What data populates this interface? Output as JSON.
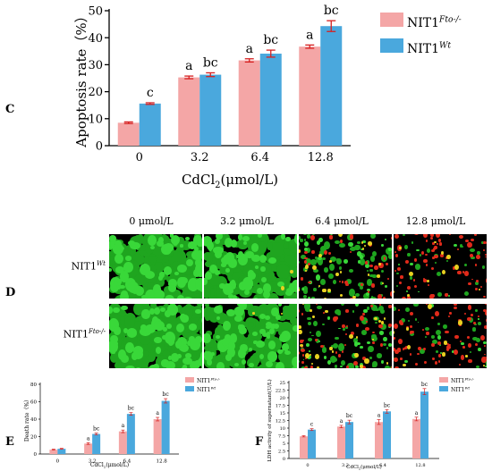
{
  "panels": {
    "C": {
      "letter": "C",
      "chart_data": {
        "type": "bar",
        "categories": [
          "0",
          "3.2",
          "6.4",
          "12.8"
        ],
        "series": [
          {
            "name": "NIT1Fto-/-",
            "values": [
              8.5,
              25.3,
              31.6,
              36.7
            ],
            "errors": [
              0.3,
              0.5,
              0.6,
              0.6
            ],
            "sig": [
              "",
              "a",
              "a",
              "a"
            ]
          },
          {
            "name": "NIT1Wt",
            "values": [
              15.6,
              26.3,
              34.1,
              44.3
            ],
            "errors": [
              0.3,
              0.7,
              1.3,
              2.0
            ],
            "sig": [
              "c",
              "bc",
              "bc",
              "bc"
            ]
          }
        ],
        "ylabel": "Apoptosis rate（%）",
        "xlabel": "CdCl2(μmol/L)",
        "ylim": [
          0,
          50
        ],
        "yticks": [
          "0",
          "10",
          "20",
          "30",
          "40",
          "50"
        ],
        "legend": [
          {
            "base": "NIT1",
            "sup": "Fto-/-"
          },
          {
            "base": "NIT1",
            "sup": "Wt"
          }
        ],
        "legend_position": "top-right",
        "colors": [
          "#f4a6a6",
          "#4aa8dd"
        ]
      }
    },
    "D": {
      "letter": "D",
      "conditions": [
        "0 μmol/L",
        "3.2 μmol/L",
        "6.4 μmol/L",
        "12.8 μmol/L"
      ],
      "rows": [
        {
          "base": "NIT1",
          "sup": "Wt"
        },
        {
          "base": "NIT1",
          "sup": "Fto-/-"
        }
      ]
    },
    "E": {
      "letter": "E",
      "chart_data": {
        "type": "bar",
        "categories": [
          "0",
          "3.2",
          "6.4",
          "12.8"
        ],
        "series": [
          {
            "name": "NIT1Fto-/-",
            "values": [
              5,
              12,
              26,
              40
            ],
            "errors": [
              0.5,
              1,
              1.5,
              2
            ],
            "sig": [
              "",
              "a",
              "a",
              "a"
            ]
          },
          {
            "name": "NIT1Wt",
            "values": [
              6,
              23,
              46,
              61
            ],
            "errors": [
              0.5,
              1,
              1.5,
              2.5
            ],
            "sig": [
              "",
              "bc",
              "bc",
              "bc"
            ]
          }
        ],
        "ylabel": "Death rate（%）",
        "xlabel": "CdCl2(μmol/L)",
        "ylim": [
          0,
          80
        ],
        "yticks": [
          "0",
          "20",
          "40",
          "60",
          "80"
        ],
        "legend": [
          {
            "base": "NIT1",
            "sup": "Fto-/-"
          },
          {
            "base": "NIT1",
            "sup": "Wt"
          }
        ],
        "legend_position": "top-right",
        "colors": [
          "#f4a6a6",
          "#4aa8dd"
        ]
      }
    },
    "F": {
      "letter": "F",
      "chart_data": {
        "type": "bar",
        "categories": [
          "0",
          "3.2",
          "6.4",
          "12.8"
        ],
        "series": [
          {
            "name": "NIT1Fto-/-",
            "values": [
              7.3,
              10.5,
              12,
              13
            ],
            "errors": [
              0.2,
              0.4,
              0.8,
              0.6
            ],
            "sig": [
              "",
              "a",
              "a",
              "a"
            ]
          },
          {
            "name": "NIT1Wt",
            "values": [
              9.5,
              12,
              15.5,
              22
            ],
            "errors": [
              0.3,
              0.6,
              0.6,
              1.0
            ],
            "sig": [
              "c",
              "bc",
              "bc",
              "bc"
            ]
          }
        ],
        "ylabel": "LDH activity of supernatant(U/L)",
        "xlabel": "CdCl2(μmol/L)",
        "ylim": [
          0,
          25
        ],
        "yticks": [
          "0",
          "2.5",
          "5",
          "7.5",
          "10",
          "12.5",
          "15",
          "17.5",
          "20",
          "22.5",
          "25"
        ],
        "legend": [
          {
            "base": "NIT1",
            "sup": "Fto-/-"
          },
          {
            "base": "NIT1",
            "sup": "Wt"
          }
        ],
        "legend_position": "top-right",
        "colors": [
          "#f4a6a6",
          "#4aa8dd"
        ]
      }
    }
  }
}
